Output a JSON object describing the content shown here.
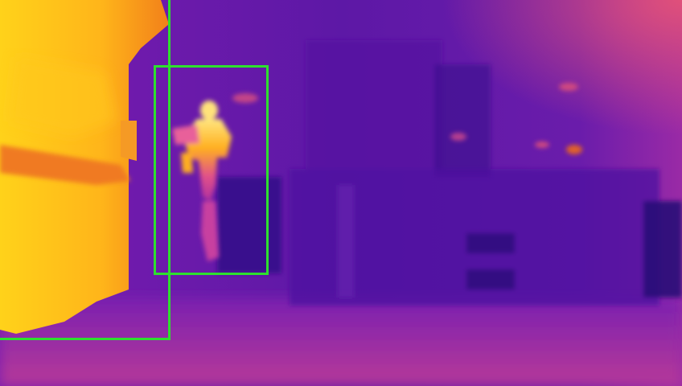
{
  "image": {
    "type": "thermal-camera-frame",
    "palette": "ironbow",
    "colors": {
      "background_cool": "#5a1aa8",
      "background_mid": "#7a22b5",
      "floor": "#b035a0",
      "hot": "#ffd21a",
      "warm": "#f78a1a",
      "box_outline": "#2ee02e"
    }
  },
  "detections": [
    {
      "id": "left-object",
      "label": ""
    },
    {
      "id": "person",
      "label": ""
    }
  ]
}
